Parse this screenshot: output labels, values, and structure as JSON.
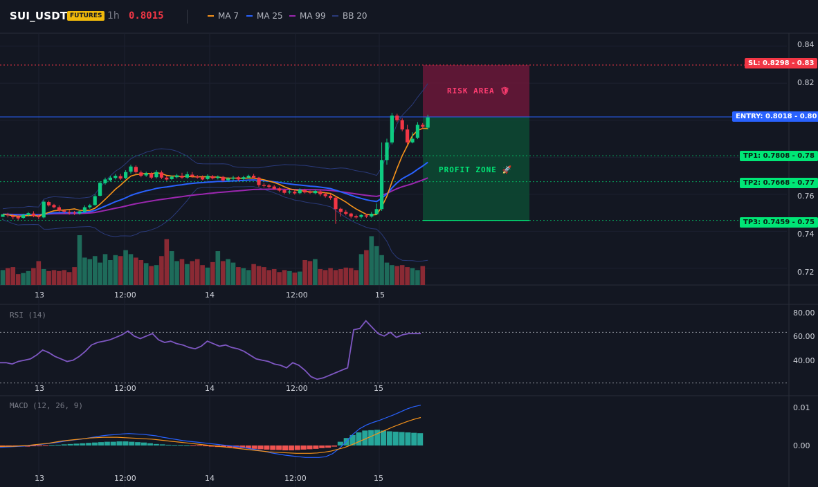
{
  "header": {
    "symbol": "SUI_USDT",
    "badge": "FUTURES",
    "timeframe": "1h",
    "price": "0.8015",
    "indicators": [
      {
        "label": "MA 7",
        "color": "#f7931a"
      },
      {
        "label": "MA 25",
        "color": "#2962ff"
      },
      {
        "label": "MA 99",
        "color": "#9c27b0"
      },
      {
        "label": "BB 20",
        "color": "#2a3a7a"
      }
    ]
  },
  "colors": {
    "up": "#0ecb81",
    "down": "#f23645",
    "entry": "#2962ff",
    "sl": "#f23645",
    "tp": "#00e676"
  },
  "price_axis": [
    "0.84",
    "0.82",
    "0.80",
    "0.78",
    "0.76",
    "0.74",
    "0.72"
  ],
  "time_axis": [
    "13",
    "12:00",
    "14",
    "12:00",
    "15"
  ],
  "trade_levels": {
    "sl": {
      "label": "SL: 0.8298 - 0.83",
      "value": 0.8298
    },
    "entry": {
      "label": "ENTRY: 0.8018 - 0.80",
      "value": 0.8018
    },
    "tp": [
      {
        "label": "TP1: 0.7808 - 0.78",
        "value": 0.7808
      },
      {
        "label": "TP2: 0.7668 - 0.77",
        "value": 0.7668
      },
      {
        "label": "TP3: 0.7459 - 0.75",
        "value": 0.7459
      }
    ]
  },
  "zones": {
    "risk": "RISK AREA",
    "profit": "PROFIT ZONE"
  },
  "rsi": {
    "label": "RSI (14)",
    "axis": [
      "80.00",
      "60.00",
      "40.00"
    ]
  },
  "macd": {
    "label": "MACD (12, 26, 9)",
    "axis": [
      "0.01",
      "0.00"
    ]
  },
  "chart_data": {
    "type": "line",
    "candles": [
      [
        0.7478,
        0.7492,
        0.7468,
        0.7462
      ],
      [
        0.749,
        0.7486,
        0.75,
        0.7475
      ],
      [
        0.7484,
        0.7476,
        0.7495,
        0.7465
      ],
      [
        0.7478,
        0.747,
        0.749,
        0.746
      ],
      [
        0.7472,
        0.749,
        0.7495,
        0.7468
      ],
      [
        0.7488,
        0.7498,
        0.7504,
        0.748
      ],
      [
        0.7496,
        0.7482,
        0.7508,
        0.7476
      ],
      [
        0.7484,
        0.7476,
        0.749,
        0.7466
      ],
      [
        0.7475,
        0.756,
        0.7568,
        0.747
      ],
      [
        0.7558,
        0.754,
        0.7565,
        0.7534
      ],
      [
        0.7542,
        0.753,
        0.7548,
        0.7524
      ],
      [
        0.753,
        0.7512,
        0.754,
        0.7505
      ],
      [
        0.7512,
        0.7506,
        0.752,
        0.7495
      ],
      [
        0.7505,
        0.75,
        0.7514,
        0.749
      ],
      [
        0.7502,
        0.7498,
        0.751,
        0.7488
      ],
      [
        0.7496,
        0.7508,
        0.7515,
        0.749
      ],
      [
        0.7505,
        0.753,
        0.754,
        0.7498
      ],
      [
        0.753,
        0.754,
        0.7548,
        0.7522
      ],
      [
        0.7542,
        0.759,
        0.76,
        0.7538
      ],
      [
        0.7592,
        0.7662,
        0.767,
        0.7588
      ],
      [
        0.766,
        0.768,
        0.769,
        0.7652
      ],
      [
        0.7676,
        0.769,
        0.77,
        0.7668
      ],
      [
        0.7688,
        0.77,
        0.771,
        0.768
      ],
      [
        0.7698,
        0.7685,
        0.771,
        0.7678
      ],
      [
        0.7688,
        0.772,
        0.773,
        0.7682
      ],
      [
        0.7722,
        0.775,
        0.776,
        0.7712
      ],
      [
        0.7748,
        0.772,
        0.7756,
        0.7712
      ],
      [
        0.7718,
        0.77,
        0.7728,
        0.7692
      ],
      [
        0.7702,
        0.7714,
        0.7722,
        0.7694
      ],
      [
        0.7712,
        0.769,
        0.772,
        0.7682
      ],
      [
        0.7692,
        0.772,
        0.773,
        0.7686
      ],
      [
        0.7718,
        0.769,
        0.7728,
        0.7682
      ],
      [
        0.769,
        0.768,
        0.77,
        0.7672
      ],
      [
        0.7682,
        0.7695,
        0.7702,
        0.7676
      ],
      [
        0.7692,
        0.7702,
        0.771,
        0.7686
      ],
      [
        0.77,
        0.769,
        0.7716,
        0.7684
      ],
      [
        0.769,
        0.7708,
        0.7722,
        0.7684
      ],
      [
        0.7706,
        0.7696,
        0.772,
        0.769
      ],
      [
        0.7696,
        0.769,
        0.7704,
        0.7684
      ],
      [
        0.7692,
        0.768,
        0.7702,
        0.7676
      ],
      [
        0.7682,
        0.77,
        0.7708,
        0.7676
      ],
      [
        0.7698,
        0.7686,
        0.7704,
        0.768
      ],
      [
        0.7688,
        0.7695,
        0.7702,
        0.768
      ],
      [
        0.7694,
        0.7675,
        0.77,
        0.7668
      ],
      [
        0.7676,
        0.7685,
        0.7692,
        0.7668
      ],
      [
        0.7684,
        0.769,
        0.77,
        0.7676
      ],
      [
        0.7692,
        0.768,
        0.7698,
        0.7672
      ],
      [
        0.7682,
        0.7692,
        0.77,
        0.7676
      ],
      [
        0.769,
        0.77,
        0.7706,
        0.7684
      ],
      [
        0.77,
        0.769,
        0.771,
        0.7684
      ],
      [
        0.769,
        0.765,
        0.7694,
        0.764
      ],
      [
        0.765,
        0.7645,
        0.766,
        0.7636
      ],
      [
        0.7648,
        0.764,
        0.7655,
        0.7632
      ],
      [
        0.7642,
        0.763,
        0.765,
        0.7624
      ],
      [
        0.7632,
        0.762,
        0.764,
        0.7612
      ],
      [
        0.7622,
        0.7608,
        0.763,
        0.76
      ],
      [
        0.761,
        0.7615,
        0.7625,
        0.7602
      ],
      [
        0.7614,
        0.7605,
        0.7622,
        0.7598
      ],
      [
        0.7606,
        0.7625,
        0.7632,
        0.76
      ],
      [
        0.7622,
        0.761,
        0.763,
        0.7604
      ],
      [
        0.7612,
        0.7608,
        0.762,
        0.7602
      ],
      [
        0.7606,
        0.7618,
        0.7626,
        0.76
      ],
      [
        0.7616,
        0.76,
        0.7622,
        0.759
      ],
      [
        0.7602,
        0.759,
        0.761,
        0.7582
      ],
      [
        0.7592,
        0.758,
        0.76,
        0.757
      ],
      [
        0.7582,
        0.752,
        0.7585,
        0.744
      ],
      [
        0.7522,
        0.7505,
        0.7528,
        0.748
      ],
      [
        0.7505,
        0.7495,
        0.7515,
        0.7486
      ],
      [
        0.7496,
        0.748,
        0.75,
        0.747
      ],
      [
        0.7482,
        0.7475,
        0.749,
        0.7468
      ],
      [
        0.7478,
        0.7488,
        0.7494,
        0.747
      ],
      [
        0.7486,
        0.748,
        0.7495,
        0.7472
      ],
      [
        0.748,
        0.7495,
        0.7505,
        0.7474
      ],
      [
        0.7493,
        0.752,
        0.755,
        0.7488
      ],
      [
        0.752,
        0.7785,
        0.788,
        0.751
      ],
      [
        0.7785,
        0.788,
        0.79,
        0.776
      ],
      [
        0.788,
        0.8025,
        0.804,
        0.787
      ],
      [
        0.8025,
        0.8,
        0.8035,
        0.799
      ],
      [
        0.8,
        0.795,
        0.801,
        0.794
      ],
      [
        0.795,
        0.788,
        0.7975,
        0.787
      ],
      [
        0.788,
        0.79,
        0.7935,
        0.7875
      ],
      [
        0.7905,
        0.7975,
        0.799,
        0.7898
      ],
      [
        0.7975,
        0.7965,
        0.7985,
        0.7955
      ],
      [
        0.796,
        0.8015,
        0.803,
        0.795
      ]
    ],
    "volume": [
      0.3,
      0.34,
      0.36,
      0.22,
      0.24,
      0.28,
      0.34,
      0.48,
      0.32,
      0.28,
      0.3,
      0.28,
      0.3,
      0.26,
      0.36,
      1.0,
      0.55,
      0.52,
      0.58,
      0.45,
      0.62,
      0.5,
      0.6,
      0.58,
      0.7,
      0.62,
      0.55,
      0.5,
      0.44,
      0.38,
      0.4,
      0.58,
      0.92,
      0.68,
      0.48,
      0.52,
      0.42,
      0.48,
      0.52,
      0.4,
      0.35,
      0.46,
      0.68,
      0.48,
      0.52,
      0.45,
      0.36,
      0.34,
      0.3,
      0.42,
      0.38,
      0.36,
      0.3,
      0.32,
      0.26,
      0.3,
      0.28,
      0.25,
      0.27,
      0.5,
      0.48,
      0.52,
      0.32,
      0.3,
      0.34,
      0.3,
      0.32,
      0.35,
      0.34,
      0.3,
      0.62,
      0.7,
      0.98,
      0.78,
      0.6,
      0.45,
      0.4,
      0.38,
      0.4,
      0.36,
      0.34,
      0.3,
      0.38
    ],
    "rsi": [
      46,
      46,
      45,
      47,
      48,
      49,
      52,
      56,
      54,
      51,
      49,
      47,
      48,
      51,
      55,
      60,
      62,
      63,
      64,
      66,
      68,
      71,
      67,
      65,
      67,
      69,
      64,
      62,
      63,
      61,
      60,
      58,
      57,
      59,
      63,
      61,
      59,
      60,
      58,
      57,
      55,
      52,
      49,
      48,
      47,
      45,
      44,
      42,
      46,
      44,
      40,
      35,
      33,
      34,
      36,
      38,
      40,
      42,
      72,
      73,
      79,
      74,
      69,
      67,
      70,
      66,
      68,
      69,
      69,
      69
    ],
    "macd": {
      "hist": [
        -0.0004,
        -0.0004,
        -0.0003,
        -0.0003,
        -0.0003,
        -0.0002,
        -0.0002,
        -0.0001,
        0.0001,
        0.0002,
        0.0003,
        0.0004,
        0.0005,
        0.0006,
        0.0007,
        0.0008,
        0.0009,
        0.001,
        0.001,
        0.0011,
        0.0011,
        0.001,
        0.0009,
        0.0008,
        0.0006,
        0.0004,
        0.0003,
        0.0002,
        0.0001,
        0.0001,
        0.0,
        -0.0001,
        -0.0001,
        -0.0002,
        -0.0003,
        -0.0004,
        -0.0004,
        -0.0005,
        -0.0006,
        -0.0007,
        -0.0008,
        -0.0009,
        -0.001,
        -0.0011,
        -0.0012,
        -0.0012,
        -0.0013,
        -0.0013,
        -0.0012,
        -0.0011,
        -0.001,
        -0.0009,
        -0.0007,
        -0.0006,
        -0.0003,
        0.001,
        0.002,
        0.0028,
        0.0035,
        0.004,
        0.0041,
        0.0042,
        0.004,
        0.0038,
        0.0037,
        0.0036,
        0.0035,
        0.0034,
        0.0033
      ],
      "line": [
        -0.0005,
        -0.0004,
        -0.0003,
        -0.0002,
        -0.0001,
        0.0001,
        0.0003,
        0.0005,
        0.0007,
        0.001,
        0.0013,
        0.0015,
        0.0017,
        0.002,
        0.0023,
        0.0026,
        0.0028,
        0.0029,
        0.0031,
        0.0032,
        0.0031,
        0.003,
        0.0028,
        0.0026,
        0.0022,
        0.0019,
        0.0016,
        0.0013,
        0.0011,
        0.0009,
        0.0007,
        0.0005,
        0.0003,
        0.0001,
        -0.0001,
        -0.0003,
        -0.0006,
        -0.0009,
        -0.0012,
        -0.0016,
        -0.002,
        -0.0023,
        -0.0026,
        -0.0028,
        -0.003,
        -0.0032,
        -0.0032,
        -0.0032,
        -0.003,
        -0.0022,
        -0.0008,
        0.001,
        0.003,
        0.0045,
        0.0055,
        0.0062,
        0.0068,
        0.0075,
        0.0082,
        0.009,
        0.0098,
        0.0104,
        0.0108
      ],
      "signal": [
        -0.0002,
        -0.0002,
        -0.0002,
        -0.0001,
        0.0,
        0.0002,
        0.0004,
        0.0006,
        0.0009,
        0.0012,
        0.0014,
        0.0016,
        0.0018,
        0.002,
        0.0021,
        0.0022,
        0.0022,
        0.0022,
        0.0021,
        0.002,
        0.0019,
        0.0018,
        0.0017,
        0.0015,
        0.0013,
        0.0011,
        0.0009,
        0.0007,
        0.0005,
        0.0003,
        0.0001,
        -0.0001,
        -0.0003,
        -0.0005,
        -0.0007,
        -0.0009,
        -0.0011,
        -0.0013,
        -0.0015,
        -0.0017,
        -0.0018,
        -0.0019,
        -0.002,
        -0.0021,
        -0.0021,
        -0.0021,
        -0.002,
        -0.0018,
        -0.0015,
        -0.001,
        -0.0005,
        0.0002,
        0.001,
        0.0018,
        0.0026,
        0.0034,
        0.0042,
        0.005,
        0.0057,
        0.0064,
        0.007,
        0.0075
      ]
    },
    "price_range": [
      0.711,
      0.847
    ]
  }
}
